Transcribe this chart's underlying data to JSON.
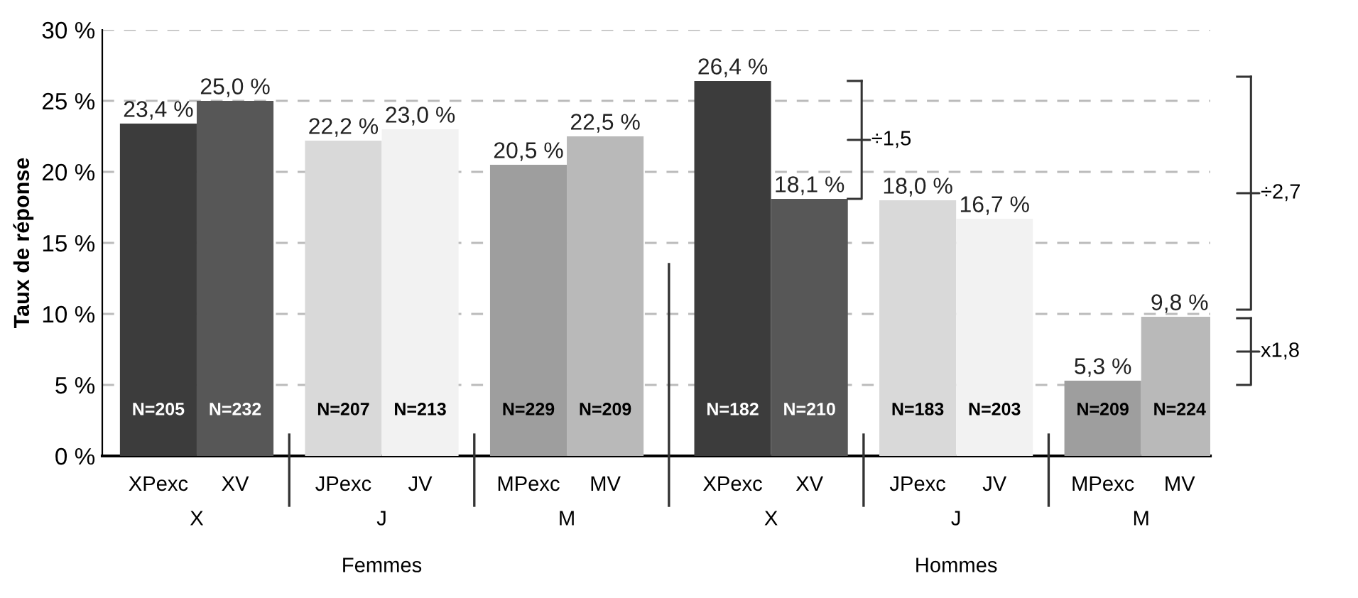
{
  "chart_data": {
    "type": "bar",
    "ylabel": "Taux de réponse",
    "categories": [
      "XPexc",
      "XV",
      "JPexc",
      "JV",
      "MPexc",
      "MV",
      "XPexc",
      "XV",
      "JPexc",
      "JV",
      "MPexc",
      "MV"
    ],
    "values": [
      23.4,
      25.0,
      22.2,
      23.0,
      20.5,
      22.5,
      26.4,
      18.1,
      18.0,
      16.7,
      5.3,
      9.8
    ],
    "colors": [
      "#3c3c3c",
      "#575757",
      "#d9d9d9",
      "#f2f2f2",
      "#9e9e9e",
      "#b9b9b9",
      "#3c3c3c",
      "#575757",
      "#d9d9d9",
      "#f2f2f2",
      "#9e9e9e",
      "#b9b9b9"
    ],
    "value_labels": [
      "23,4 %",
      "25,0 %",
      "22,2 %",
      "23,0 %",
      "20,5 %",
      "22,5 %",
      "26,4 %",
      "18,1 %",
      "18,0 %",
      "16,7 %",
      "5,3 %",
      "9,8 %"
    ],
    "ylim": [
      0,
      30
    ],
    "yticks": [
      {
        "value": 0,
        "label": "0 %"
      },
      {
        "value": 5,
        "label": "5 %"
      },
      {
        "value": 10,
        "label": "10 %"
      },
      {
        "value": 15,
        "label": "15 %"
      },
      {
        "value": 20,
        "label": "20 %"
      },
      {
        "value": 25,
        "label": "25 %"
      },
      {
        "value": 30,
        "label": "30 %"
      }
    ],
    "grid": "y",
    "annotations": [
      "X",
      "J",
      "M",
      "X",
      "J",
      "M",
      "Femmes",
      "Hommes",
      "N=205",
      "N=232",
      "N=207",
      "N=213",
      "N=229",
      "N=209",
      "N=182",
      "N=210",
      "N=183",
      "N=203",
      "N=209",
      "N=224",
      "÷1,5",
      "÷2,7",
      "x1,8"
    ]
  }
}
